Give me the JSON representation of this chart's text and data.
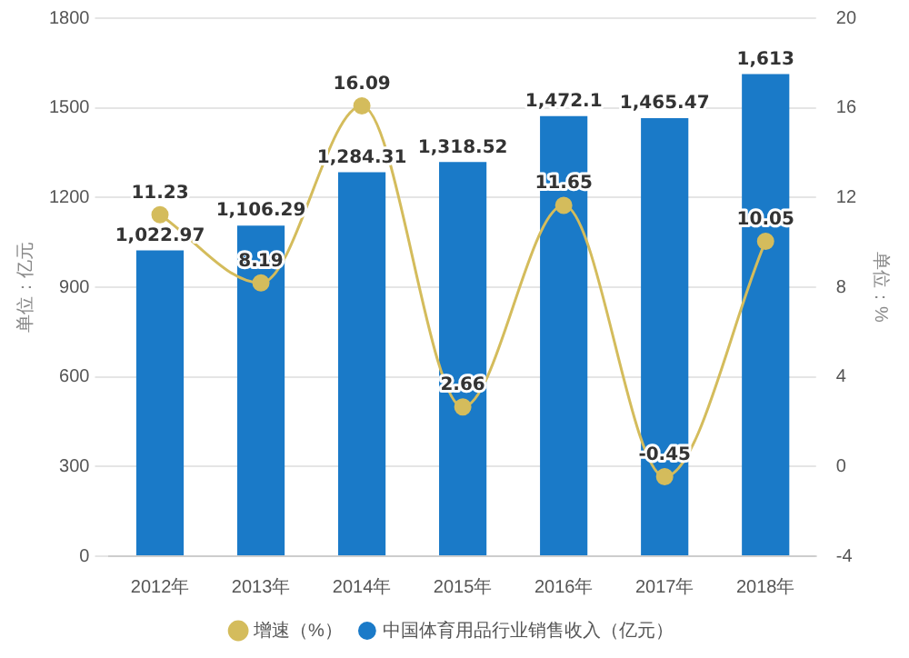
{
  "chart_data": {
    "type": "bar",
    "categories": [
      "2012年",
      "2013年",
      "2014年",
      "2015年",
      "2016年",
      "2017年",
      "2018年"
    ],
    "ylabel": "单位：亿元",
    "y2label": "单位：%",
    "series": [
      {
        "name": "中国体育用品行业销售收入（亿元）",
        "color": "#1a7ac8",
        "values": [
          1022.97,
          1106.29,
          1284.31,
          1318.52,
          1472.1,
          1465.47,
          1613
        ],
        "value_labels": [
          "1,022.97",
          "1,106.29",
          "1,284.31",
          "1,318.52",
          "1,472.1",
          "1,465.47",
          "1,613"
        ]
      },
      {
        "name": "增速（%）",
        "type": "line",
        "axis": "y2",
        "color": "#d4bc5c",
        "values": [
          11.23,
          8.19,
          16.09,
          2.66,
          11.65,
          -0.45,
          10.05
        ],
        "value_labels": [
          "11.23",
          "8.19",
          "16.09",
          "2.66",
          "11.65",
          "-0.45",
          "10.05"
        ]
      }
    ],
    "ylim": [
      0,
      1800
    ],
    "yticks": [
      0,
      300,
      600,
      900,
      1200,
      1500,
      1800
    ],
    "y2lim": [
      -4,
      20
    ],
    "y2ticks": [
      -4,
      0,
      4,
      8,
      12,
      16,
      20
    ],
    "grid": "y",
    "legend": "bottom",
    "marker": "circle",
    "line_style": "solid"
  }
}
